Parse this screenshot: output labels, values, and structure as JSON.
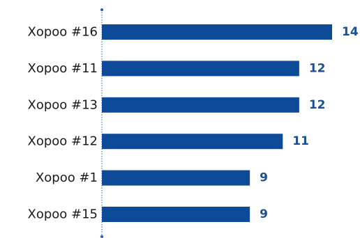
{
  "chart_data": {
    "type": "bar",
    "orientation": "horizontal",
    "categories": [
      "Xopoo #16",
      "Xopoo #11",
      "Xopoo #13",
      "Xopoo #12",
      "Xopoo #1",
      "Xopoo #15"
    ],
    "values": [
      14,
      12,
      12,
      11,
      9,
      9
    ],
    "title": "",
    "xlabel": "",
    "ylabel": "",
    "xlim": [
      0,
      14
    ],
    "grid": false,
    "legend": "none",
    "data_labels": true,
    "colors": {
      "bar": "#0d4a97",
      "value_label": "#1a4f93",
      "axis": "#2b5ea7"
    }
  }
}
